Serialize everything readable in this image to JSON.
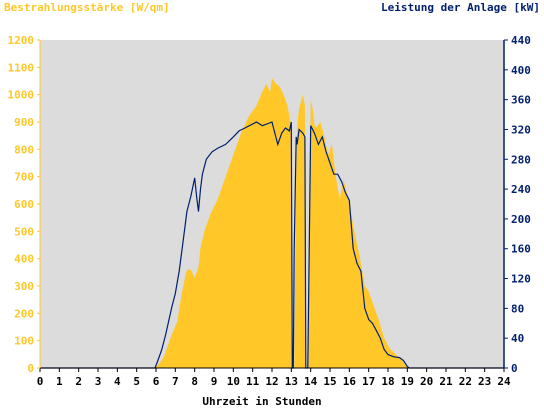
{
  "chart_data": {
    "type": "area",
    "title_left": "Bestrahlungsstärke [W/qm]",
    "title_right": "Leistung der Anlage [kW]",
    "xlabel": "Uhrzeit in Stunden",
    "xlim": [
      0,
      24
    ],
    "x_ticks": [
      "0",
      "1",
      "2",
      "3",
      "4",
      "5",
      "6",
      "7",
      "8",
      "9",
      "10",
      "11",
      "12",
      "13",
      "14",
      "15",
      "16",
      "17",
      "18",
      "19",
      "20",
      "21",
      "22",
      "23",
      "24"
    ],
    "y_left": {
      "ylim": [
        0,
        1200
      ],
      "ticks": [
        "0",
        "100",
        "200",
        "300",
        "400",
        "500",
        "600",
        "700",
        "800",
        "900",
        "1000",
        "1100",
        "1200"
      ],
      "color": "#ffc828"
    },
    "y_right": {
      "ylim": [
        0,
        440
      ],
      "ticks": [
        "0",
        "40",
        "80",
        "120",
        "160",
        "200",
        "240",
        "280",
        "320",
        "360",
        "400",
        "440"
      ],
      "color": "#001f6e"
    },
    "grid": false,
    "background": "#dcdcdc",
    "series": [
      {
        "axis": "left",
        "style": "area",
        "color": "#ffc828",
        "x": [
          0,
          5.9,
          6.1,
          6.4,
          6.8,
          7.1,
          7.3,
          7.5,
          7.6,
          7.8,
          8.0,
          8.2,
          8.3,
          8.5,
          8.8,
          9.2,
          9.6,
          10.0,
          10.4,
          10.8,
          11.2,
          11.5,
          11.7,
          11.9,
          12.0,
          12.2,
          12.4,
          12.6,
          12.8,
          13.0,
          13.05,
          13.15,
          13.25,
          13.3,
          13.4,
          13.6,
          13.7,
          13.75,
          13.85,
          14.0,
          14.1,
          14.2,
          14.3,
          14.5,
          14.7,
          14.9,
          15.1,
          15.3,
          15.5,
          15.7,
          15.8,
          16.0,
          16.2,
          16.5,
          16.8,
          17.0,
          17.2,
          17.5,
          17.8,
          18.1,
          18.4,
          18.7,
          18.9,
          19.1,
          24
        ],
        "values": [
          0,
          0,
          10,
          40,
          120,
          170,
          260,
          330,
          360,
          360,
          330,
          370,
          440,
          500,
          560,
          620,
          700,
          780,
          860,
          920,
          960,
          1010,
          1040,
          1010,
          1060,
          1040,
          1030,
          1000,
          960,
          880,
          0,
          0,
          700,
          880,
          950,
          1000,
          960,
          0,
          0,
          980,
          950,
          890,
          880,
          900,
          850,
          780,
          820,
          700,
          620,
          690,
          660,
          600,
          520,
          420,
          300,
          280,
          240,
          180,
          110,
          70,
          50,
          30,
          10,
          0,
          0
        ]
      },
      {
        "axis": "right",
        "style": "line",
        "color": "#001f6e",
        "x": [
          0,
          5.95,
          6.1,
          6.3,
          6.5,
          6.8,
          7.0,
          7.2,
          7.4,
          7.6,
          7.8,
          8.0,
          8.1,
          8.2,
          8.3,
          8.4,
          8.6,
          8.9,
          9.2,
          9.6,
          10.0,
          10.3,
          10.6,
          10.9,
          11.2,
          11.5,
          11.8,
          12.0,
          12.1,
          12.3,
          12.5,
          12.7,
          12.9,
          13.0,
          13.05,
          13.1,
          13.15,
          13.25,
          13.3,
          13.4,
          13.6,
          13.7,
          13.75,
          13.85,
          14.0,
          14.2,
          14.4,
          14.6,
          14.8,
          15.0,
          15.2,
          15.4,
          15.6,
          15.8,
          16.0,
          16.2,
          16.4,
          16.6,
          16.8,
          17.0,
          17.2,
          17.4,
          17.6,
          17.8,
          18.0,
          18.3,
          18.6,
          18.8,
          19.0,
          19.1,
          24
        ],
        "values": [
          0,
          0,
          10,
          25,
          45,
          80,
          100,
          130,
          170,
          210,
          230,
          255,
          230,
          210,
          240,
          260,
          280,
          290,
          295,
          300,
          310,
          318,
          322,
          326,
          330,
          325,
          328,
          330,
          320,
          300,
          315,
          322,
          318,
          330,
          0,
          0,
          160,
          310,
          300,
          320,
          315,
          310,
          0,
          0,
          325,
          315,
          300,
          310,
          290,
          275,
          260,
          260,
          250,
          235,
          225,
          160,
          140,
          130,
          80,
          65,
          60,
          50,
          40,
          25,
          18,
          15,
          14,
          10,
          2,
          0,
          0
        ]
      }
    ]
  }
}
